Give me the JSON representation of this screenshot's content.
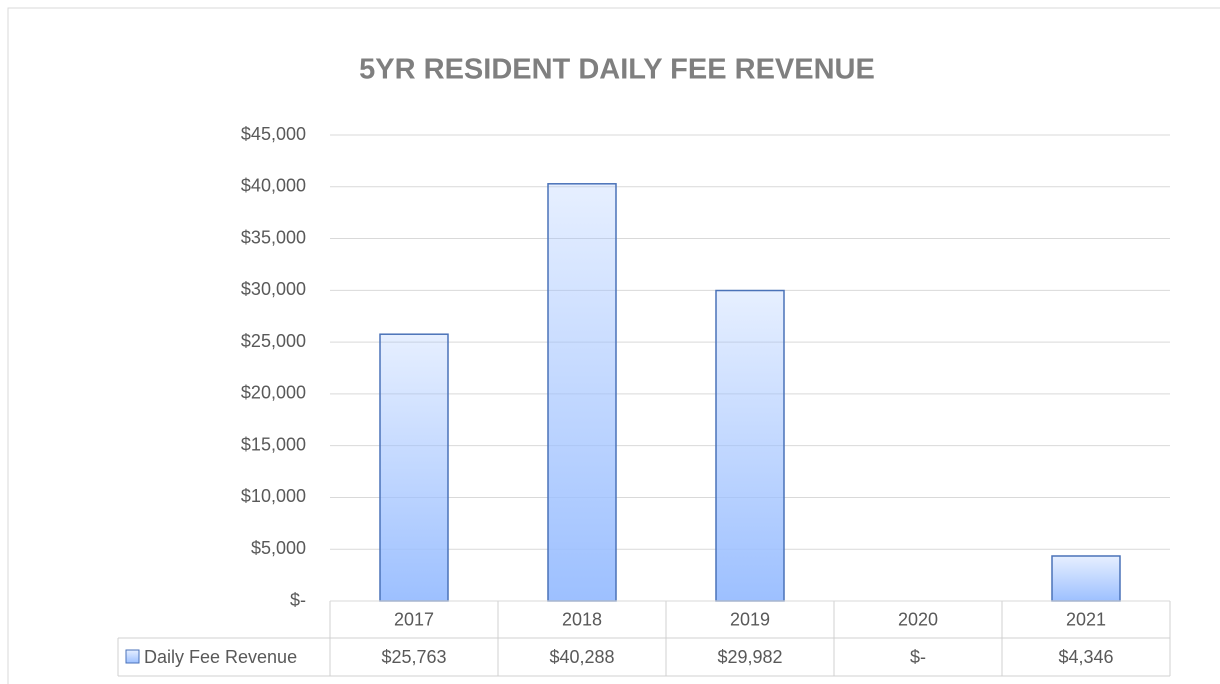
{
  "chart_data": {
    "type": "bar",
    "title": "5YR RESIDENT DAILY FEE REVENUE",
    "categories": [
      "2017",
      "2018",
      "2019",
      "2020",
      "2021"
    ],
    "series": [
      {
        "name": "Daily Fee Revenue",
        "color": "#9dc0ff",
        "border_color": "#4a72b8",
        "values": [
          25763,
          40288,
          29982,
          0,
          4346
        ],
        "value_labels": [
          "$25,763",
          "$40,288",
          "$29,982",
          "$-",
          "$4,346"
        ]
      }
    ],
    "ylim": [
      0,
      45000
    ],
    "yticks": [
      {
        "value": 0,
        "label": "$-"
      },
      {
        "value": 5000,
        "label": "$5,000"
      },
      {
        "value": 10000,
        "label": "$10,000"
      },
      {
        "value": 15000,
        "label": "$15,000"
      },
      {
        "value": 20000,
        "label": "$20,000"
      },
      {
        "value": 25000,
        "label": "$25,000"
      },
      {
        "value": 30000,
        "label": "$30,000"
      },
      {
        "value": 35000,
        "label": "$35,000"
      },
      {
        "value": 40000,
        "label": "$40,000"
      },
      {
        "value": 45000,
        "label": "$45,000"
      }
    ],
    "grid": true,
    "legend": "table"
  }
}
